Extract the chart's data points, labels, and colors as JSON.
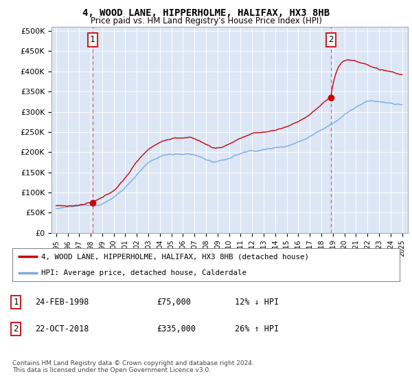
{
  "title": "4, WOOD LANE, HIPPERHOLME, HALIFAX, HX3 8HB",
  "subtitle": "Price paid vs. HM Land Registry's House Price Index (HPI)",
  "background_color": "#dce6f5",
  "plot_bg_color": "#dce6f5",
  "hpi_line_color": "#7aaadd",
  "price_line_color": "#cc0000",
  "dashed_line_color": "#dd6666",
  "ylim": [
    0,
    500000
  ],
  "yticks": [
    0,
    50000,
    100000,
    150000,
    200000,
    250000,
    300000,
    350000,
    400000,
    450000,
    500000
  ],
  "ytick_labels": [
    "£0",
    "£50K",
    "£100K",
    "£150K",
    "£200K",
    "£250K",
    "£300K",
    "£350K",
    "£400K",
    "£450K",
    "£500K"
  ],
  "sale1_year": 1998.15,
  "sale1_price": 75000,
  "sale2_year": 2018.81,
  "sale2_price": 335000,
  "legend_entry1": "4, WOOD LANE, HIPPERHOLME, HALIFAX, HX3 8HB (detached house)",
  "legend_entry2": "HPI: Average price, detached house, Calderdale",
  "footer": "Contains HM Land Registry data © Crown copyright and database right 2024.\nThis data is licensed under the Open Government Licence v3.0."
}
